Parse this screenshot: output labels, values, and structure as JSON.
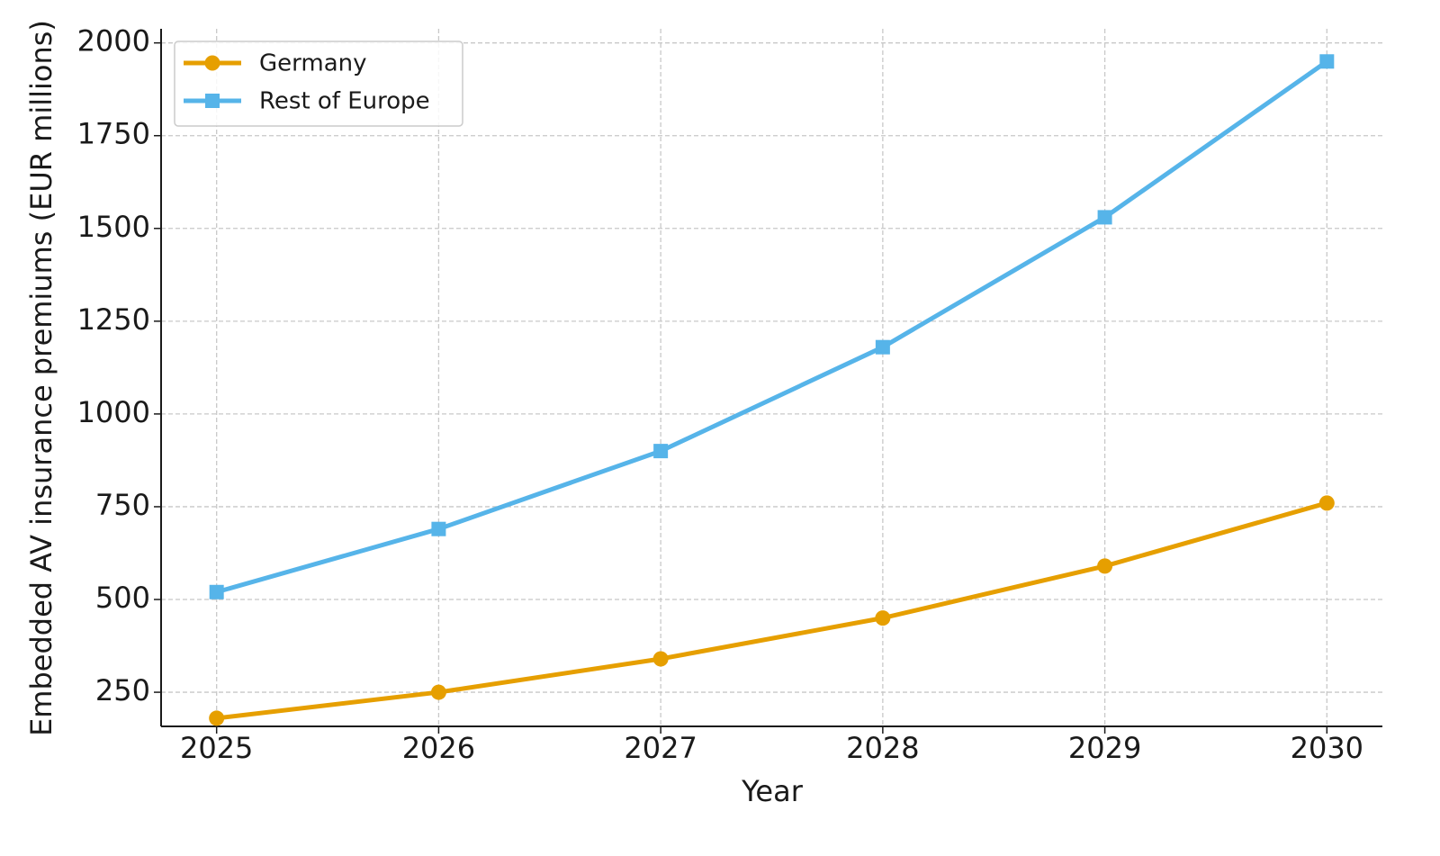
{
  "chart_data": {
    "type": "line",
    "x_label": "Year",
    "y_label": "Embedded AV insurance premiums (EUR millions)",
    "x": [
      2025,
      2026,
      2027,
      2028,
      2029,
      2030
    ],
    "series": [
      {
        "name": "Germany",
        "color": "#e69f00",
        "marker": "circle",
        "values": [
          180,
          250,
          340,
          450,
          590,
          760
        ]
      },
      {
        "name": "Rest of Europe",
        "color": "#56b4e9",
        "marker": "square",
        "values": [
          520,
          690,
          900,
          1180,
          1530,
          1950
        ]
      }
    ],
    "xlim": [
      2024.75,
      2030.25
    ],
    "xticks": [
      2025,
      2026,
      2027,
      2028,
      2029,
      2030
    ],
    "ylim": [
      158,
      2038
    ],
    "yticks": [
      250,
      500,
      750,
      1000,
      1250,
      1500,
      1750,
      2000
    ],
    "grid": true,
    "legend": "upper left"
  }
}
